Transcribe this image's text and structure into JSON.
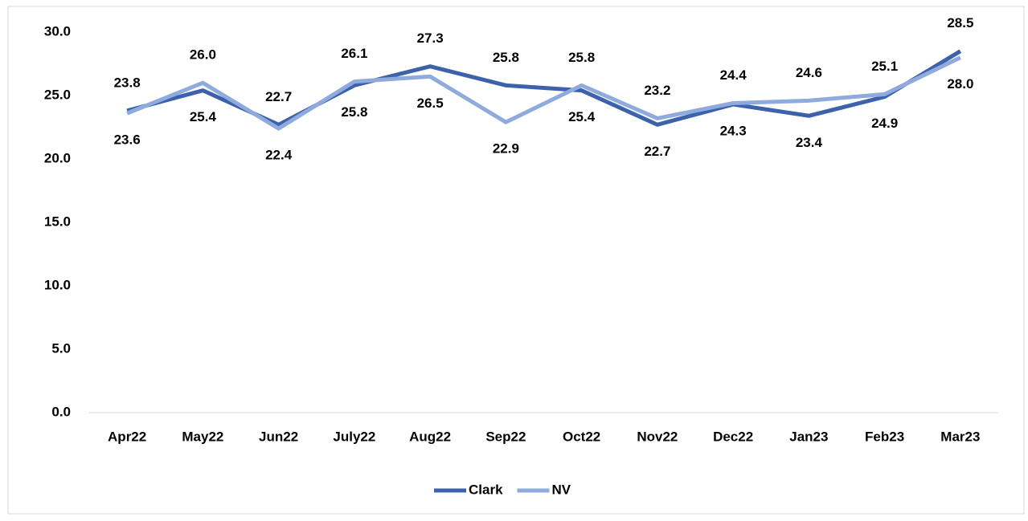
{
  "chart_data": {
    "type": "line",
    "categories": [
      "Apr22",
      "May22",
      "Jun22",
      "July22",
      "Aug22",
      "Sep22",
      "Oct22",
      "Nov22",
      "Dec22",
      "Jan23",
      "Feb23",
      "Mar23"
    ],
    "series": [
      {
        "name": "Clark",
        "color": "#3c62ac",
        "values": [
          23.8,
          25.4,
          22.7,
          25.8,
          27.3,
          25.8,
          25.4,
          22.7,
          24.3,
          23.4,
          24.9,
          28.5
        ],
        "value_labels": [
          "23.8",
          "25.4",
          "22.7",
          "25.8",
          "27.3",
          "25.8",
          "25.4",
          "22.7",
          "24.3",
          "23.4",
          "24.9",
          "28.5"
        ]
      },
      {
        "name": "NV",
        "color": "#8faadc",
        "values": [
          23.6,
          26,
          22.4,
          26.1,
          26.5,
          22.9,
          25.8,
          23.2,
          24.4,
          24.6,
          25.1,
          28
        ],
        "value_labels": [
          "23.6",
          "26.0",
          "22.4",
          "26.1",
          "26.5",
          "22.9",
          "25.8",
          "23.2",
          "24.4",
          "24.6",
          "25.1",
          "28.0"
        ]
      }
    ],
    "ylim": [
      0,
      30
    ],
    "yticks": [
      {
        "value": 0,
        "label": "0.0"
      },
      {
        "value": 5,
        "label": "5.0"
      },
      {
        "value": 10,
        "label": "10.0"
      },
      {
        "value": 15,
        "label": "15.0"
      },
      {
        "value": 20,
        "label": "20.0"
      },
      {
        "value": 25,
        "label": "25.0"
      },
      {
        "value": 30,
        "label": "30.0"
      }
    ],
    "grid": false,
    "legend": "bottom"
  }
}
